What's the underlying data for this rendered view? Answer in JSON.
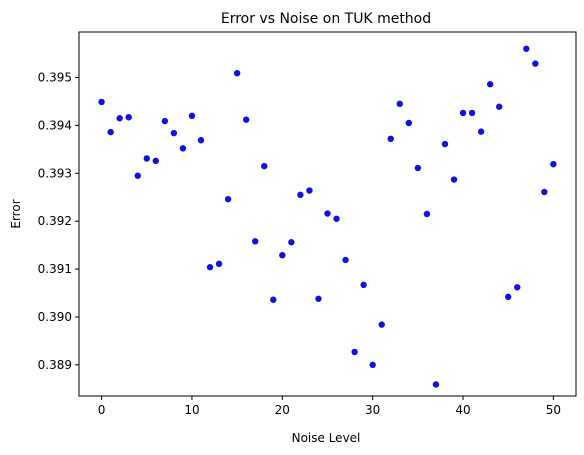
{
  "chart_data": {
    "type": "scatter",
    "title": "Error vs Noise on TUK method",
    "xlabel": "Noise Level",
    "ylabel": "Error",
    "xlim": [
      -2.5,
      52.5
    ],
    "ylim": [
      0.38835,
      0.39595
    ],
    "xticks": [
      "0",
      "10",
      "20",
      "30",
      "40",
      "50"
    ],
    "yticks": [
      "0.389",
      "0.390",
      "0.391",
      "0.392",
      "0.393",
      "0.394",
      "0.395"
    ],
    "grid": false,
    "marker_color": "#1010e6",
    "x": [
      0,
      1,
      2,
      3,
      4,
      5,
      6,
      7,
      8,
      9,
      10,
      11,
      12,
      13,
      14,
      15,
      16,
      17,
      18,
      19,
      20,
      21,
      22,
      23,
      24,
      25,
      26,
      27,
      28,
      29,
      30,
      31,
      32,
      33,
      34,
      35,
      36,
      37,
      38,
      39,
      40,
      41,
      42,
      43,
      44,
      45,
      46,
      47,
      48,
      49,
      50
    ],
    "y": [
      0.39449,
      0.39386,
      0.39415,
      0.39417,
      0.39295,
      0.39331,
      0.39326,
      0.39409,
      0.39384,
      0.39352,
      0.3942,
      0.39369,
      0.39104,
      0.39111,
      0.39246,
      0.39509,
      0.39412,
      0.39158,
      0.39315,
      0.39036,
      0.39129,
      0.39156,
      0.39255,
      0.39264,
      0.39038,
      0.39216,
      0.39205,
      0.39119,
      0.38927,
      0.39067,
      0.389,
      0.38984,
      0.39372,
      0.39445,
      0.39405,
      0.39311,
      0.39215,
      0.38859,
      0.39361,
      0.39287,
      0.39426,
      0.39426,
      0.39387,
      0.39486,
      0.39439,
      0.39042,
      0.39062,
      0.3956,
      0.39529,
      0.39261,
      0.39319
    ]
  }
}
